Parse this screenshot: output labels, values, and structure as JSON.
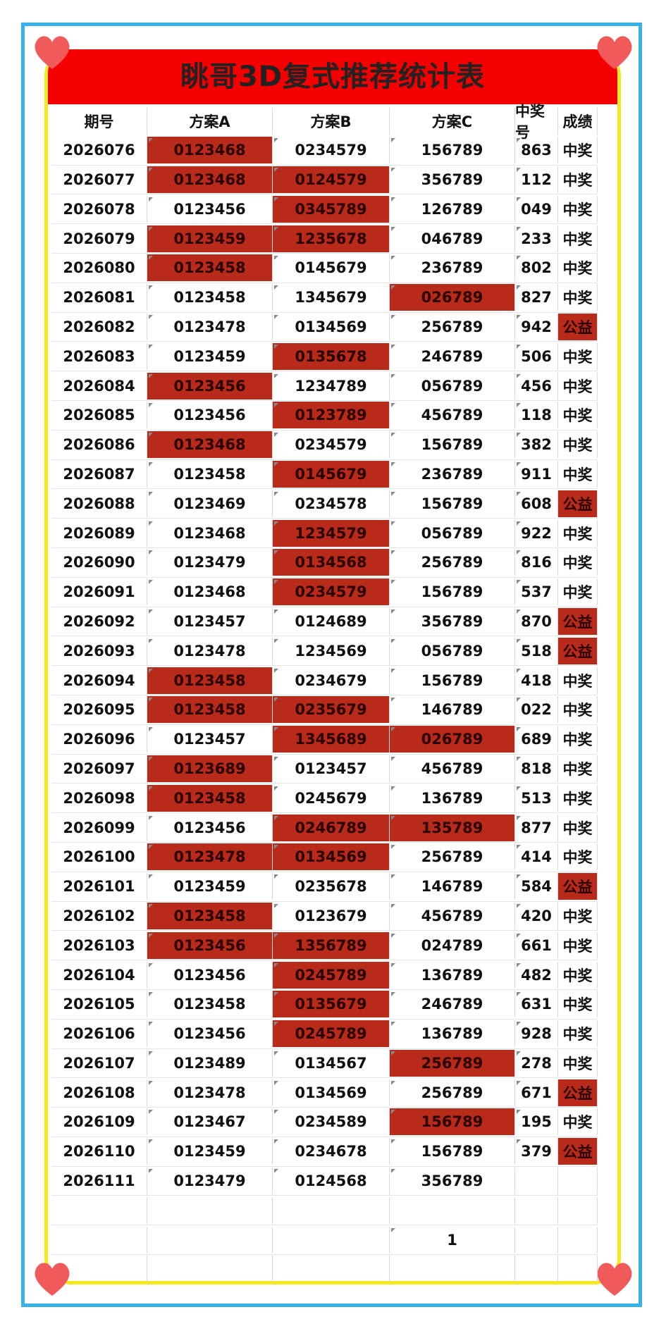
{
  "title": "眺哥3D复式推荐统计表",
  "headers": [
    "期号",
    "方案A",
    "方案B",
    "方案C",
    "中奖号",
    "成绩"
  ],
  "rows": [
    {
      "p": "2026076",
      "a": "0123468",
      "b": "0234579",
      "c": "156789",
      "n": "863",
      "r": "中奖",
      "ha": true,
      "hb": false,
      "hc": false,
      "hr": false
    },
    {
      "p": "2026077",
      "a": "0123468",
      "b": "0124579",
      "c": "356789",
      "n": "112",
      "r": "中奖",
      "ha": true,
      "hb": true,
      "hc": false,
      "hr": false
    },
    {
      "p": "2026078",
      "a": "0123456",
      "b": "0345789",
      "c": "126789",
      "n": "049",
      "r": "中奖",
      "ha": false,
      "hb": true,
      "hc": false,
      "hr": false
    },
    {
      "p": "2026079",
      "a": "0123459",
      "b": "1235678",
      "c": "046789",
      "n": "233",
      "r": "中奖",
      "ha": true,
      "hb": true,
      "hc": false,
      "hr": false
    },
    {
      "p": "2026080",
      "a": "0123458",
      "b": "0145679",
      "c": "236789",
      "n": "802",
      "r": "中奖",
      "ha": true,
      "hb": false,
      "hc": false,
      "hr": false
    },
    {
      "p": "2026081",
      "a": "0123458",
      "b": "1345679",
      "c": "026789",
      "n": "827",
      "r": "中奖",
      "ha": false,
      "hb": false,
      "hc": true,
      "hr": false
    },
    {
      "p": "2026082",
      "a": "0123478",
      "b": "0134569",
      "c": "256789",
      "n": "942",
      "r": "公益",
      "ha": false,
      "hb": false,
      "hc": false,
      "hr": true
    },
    {
      "p": "2026083",
      "a": "0123459",
      "b": "0135678",
      "c": "246789",
      "n": "506",
      "r": "中奖",
      "ha": false,
      "hb": true,
      "hc": false,
      "hr": false
    },
    {
      "p": "2026084",
      "a": "0123456",
      "b": "1234789",
      "c": "056789",
      "n": "456",
      "r": "中奖",
      "ha": true,
      "hb": false,
      "hc": false,
      "hr": false
    },
    {
      "p": "2026085",
      "a": "0123456",
      "b": "0123789",
      "c": "456789",
      "n": "118",
      "r": "中奖",
      "ha": false,
      "hb": true,
      "hc": false,
      "hr": false
    },
    {
      "p": "2026086",
      "a": "0123468",
      "b": "0234579",
      "c": "156789",
      "n": "382",
      "r": "中奖",
      "ha": true,
      "hb": false,
      "hc": false,
      "hr": false
    },
    {
      "p": "2026087",
      "a": "0123458",
      "b": "0145679",
      "c": "236789",
      "n": "911",
      "r": "中奖",
      "ha": false,
      "hb": true,
      "hc": false,
      "hr": false
    },
    {
      "p": "2026088",
      "a": "0123469",
      "b": "0234578",
      "c": "156789",
      "n": "608",
      "r": "公益",
      "ha": false,
      "hb": false,
      "hc": false,
      "hr": true
    },
    {
      "p": "2026089",
      "a": "0123468",
      "b": "1234579",
      "c": "056789",
      "n": "922",
      "r": "中奖",
      "ha": false,
      "hb": true,
      "hc": false,
      "hr": false
    },
    {
      "p": "2026090",
      "a": "0123479",
      "b": "0134568",
      "c": "256789",
      "n": "816",
      "r": "中奖",
      "ha": false,
      "hb": true,
      "hc": false,
      "hr": false
    },
    {
      "p": "2026091",
      "a": "0123468",
      "b": "0234579",
      "c": "156789",
      "n": "537",
      "r": "中奖",
      "ha": false,
      "hb": true,
      "hc": false,
      "hr": false
    },
    {
      "p": "2026092",
      "a": "0123457",
      "b": "0124689",
      "c": "356789",
      "n": "870",
      "r": "公益",
      "ha": false,
      "hb": false,
      "hc": false,
      "hr": true
    },
    {
      "p": "2026093",
      "a": "0123478",
      "b": "1234569",
      "c": "056789",
      "n": "518",
      "r": "公益",
      "ha": false,
      "hb": false,
      "hc": false,
      "hr": true
    },
    {
      "p": "2026094",
      "a": "0123458",
      "b": "0234679",
      "c": "156789",
      "n": "418",
      "r": "中奖",
      "ha": true,
      "hb": false,
      "hc": false,
      "hr": false
    },
    {
      "p": "2026095",
      "a": "0123458",
      "b": "0235679",
      "c": "146789",
      "n": "022",
      "r": "中奖",
      "ha": true,
      "hb": true,
      "hc": false,
      "hr": false
    },
    {
      "p": "2026096",
      "a": "0123457",
      "b": "1345689",
      "c": "026789",
      "n": "689",
      "r": "中奖",
      "ha": false,
      "hb": true,
      "hc": true,
      "hr": false
    },
    {
      "p": "2026097",
      "a": "0123689",
      "b": "0123457",
      "c": "456789",
      "n": "818",
      "r": "中奖",
      "ha": true,
      "hb": false,
      "hc": false,
      "hr": false
    },
    {
      "p": "2026098",
      "a": "0123458",
      "b": "0245679",
      "c": "136789",
      "n": "513",
      "r": "中奖",
      "ha": true,
      "hb": false,
      "hc": false,
      "hr": false
    },
    {
      "p": "2026099",
      "a": "0123456",
      "b": "0246789",
      "c": "135789",
      "n": "877",
      "r": "中奖",
      "ha": false,
      "hb": true,
      "hc": true,
      "hr": false
    },
    {
      "p": "2026100",
      "a": "0123478",
      "b": "0134569",
      "c": "256789",
      "n": "414",
      "r": "中奖",
      "ha": true,
      "hb": true,
      "hc": false,
      "hr": false
    },
    {
      "p": "2026101",
      "a": "0123459",
      "b": "0235678",
      "c": "146789",
      "n": "584",
      "r": "公益",
      "ha": false,
      "hb": false,
      "hc": false,
      "hr": true
    },
    {
      "p": "2026102",
      "a": "0123458",
      "b": "0123679",
      "c": "456789",
      "n": "420",
      "r": "中奖",
      "ha": true,
      "hb": false,
      "hc": false,
      "hr": false
    },
    {
      "p": "2026103",
      "a": "0123456",
      "b": "1356789",
      "c": "024789",
      "n": "661",
      "r": "中奖",
      "ha": true,
      "hb": true,
      "hc": false,
      "hr": false
    },
    {
      "p": "2026104",
      "a": "0123456",
      "b": "0245789",
      "c": "136789",
      "n": "482",
      "r": "中奖",
      "ha": false,
      "hb": true,
      "hc": false,
      "hr": false
    },
    {
      "p": "2026105",
      "a": "0123458",
      "b": "0135679",
      "c": "246789",
      "n": "631",
      "r": "中奖",
      "ha": false,
      "hb": true,
      "hc": false,
      "hr": false
    },
    {
      "p": "2026106",
      "a": "0123456",
      "b": "0245789",
      "c": "136789",
      "n": "928",
      "r": "中奖",
      "ha": false,
      "hb": true,
      "hc": false,
      "hr": false
    },
    {
      "p": "2026107",
      "a": "0123489",
      "b": "0134567",
      "c": "256789",
      "n": "278",
      "r": "中奖",
      "ha": false,
      "hb": false,
      "hc": true,
      "hr": false
    },
    {
      "p": "2026108",
      "a": "0123478",
      "b": "0134569",
      "c": "256789",
      "n": "671",
      "r": "公益",
      "ha": false,
      "hb": false,
      "hc": false,
      "hr": true
    },
    {
      "p": "2026109",
      "a": "0123467",
      "b": "0234589",
      "c": "156789",
      "n": "195",
      "r": "中奖",
      "ha": false,
      "hb": false,
      "hc": true,
      "hr": false
    },
    {
      "p": "2026110",
      "a": "0123459",
      "b": "0234678",
      "c": "156789",
      "n": "379",
      "r": "公益",
      "ha": false,
      "hb": false,
      "hc": false,
      "hr": true
    },
    {
      "p": "2026111",
      "a": "0123479",
      "b": "0124568",
      "c": "356789",
      "n": "",
      "r": "",
      "ha": false,
      "hb": false,
      "hc": false,
      "hr": false
    },
    {
      "p": "",
      "a": "",
      "b": "",
      "c": "",
      "n": "",
      "r": "",
      "ha": false,
      "hb": false,
      "hc": false,
      "hr": false
    },
    {
      "p": "",
      "a": "",
      "b": "",
      "c": "1",
      "n": "",
      "r": "",
      "ha": false,
      "hb": false,
      "hc": false,
      "hr": false
    },
    {
      "p": "",
      "a": "",
      "b": "",
      "c": "",
      "n": "",
      "r": "",
      "ha": false,
      "hb": false,
      "hc": false,
      "hr": false
    }
  ],
  "colors": {
    "banner": "#f50000",
    "highlight": "#b82a1a",
    "outer_border": "#35b3e8",
    "inner_border": "#f6e81c",
    "heart": "#f05a5a"
  }
}
